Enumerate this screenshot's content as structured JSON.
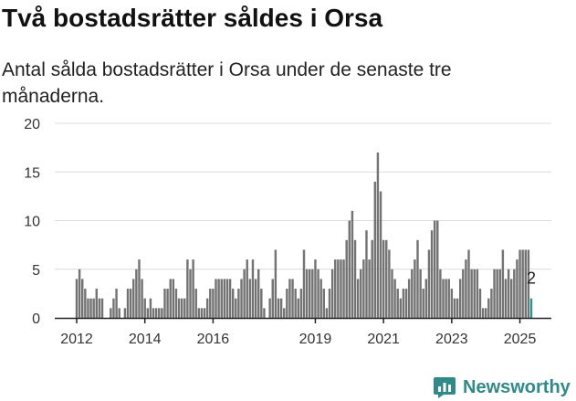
{
  "header": {
    "title": "Två bostadsrätter såldes i Orsa",
    "subtitle": "Antal sålda bostadsrätter i Orsa under de senaste tre månaderna."
  },
  "brand": {
    "name": "Newsworthy",
    "color": "#2f8a8a"
  },
  "chart_data": {
    "type": "bar",
    "title": "Två bostadsrätter såldes i Orsa",
    "subtitle": "Antal sålda bostadsrätter i Orsa under de senaste tre månaderna.",
    "xlabel": "",
    "ylabel": "",
    "ylim": [
      0,
      20
    ],
    "yticks": [
      0,
      5,
      10,
      15,
      20
    ],
    "xticks": [
      "2012",
      "2014",
      "2016",
      "2019",
      "2021",
      "2023",
      "2025"
    ],
    "grid": true,
    "colors": {
      "bar": "#737373",
      "highlight": "#1b9b9b"
    },
    "annotation": {
      "label": "2",
      "value": 2
    },
    "values": [
      4,
      5,
      4,
      3,
      2,
      2,
      2,
      3,
      2,
      2,
      0,
      0,
      1,
      2,
      3,
      1,
      0,
      1,
      3,
      3,
      4,
      5,
      6,
      4,
      2,
      1,
      2,
      1,
      1,
      1,
      1,
      3,
      3,
      4,
      4,
      3,
      2,
      2,
      2,
      6,
      5,
      6,
      3,
      1,
      1,
      1,
      2,
      3,
      3,
      4,
      4,
      4,
      4,
      4,
      4,
      3,
      2,
      3,
      4,
      5,
      6,
      4,
      6,
      4,
      5,
      3,
      1,
      0,
      2,
      4,
      7,
      2,
      2,
      1,
      3,
      4,
      4,
      3,
      2,
      3,
      7,
      5,
      5,
      5,
      6,
      5,
      4,
      3,
      1,
      3,
      5,
      6,
      6,
      6,
      6,
      8,
      10,
      11,
      8,
      4,
      5,
      6,
      9,
      6,
      8,
      14,
      17,
      13,
      8,
      8,
      7,
      5,
      4,
      3,
      2,
      3,
      3,
      4,
      5,
      6,
      8,
      5,
      3,
      4,
      7,
      9,
      10,
      10,
      5,
      4,
      4,
      4,
      3,
      2,
      2,
      4,
      5,
      6,
      7,
      5,
      5,
      5,
      3,
      1,
      1,
      2,
      3,
      5,
      5,
      5,
      7,
      4,
      5,
      4,
      5,
      6,
      7,
      7,
      7,
      7,
      2
    ],
    "highlight_last": true
  }
}
